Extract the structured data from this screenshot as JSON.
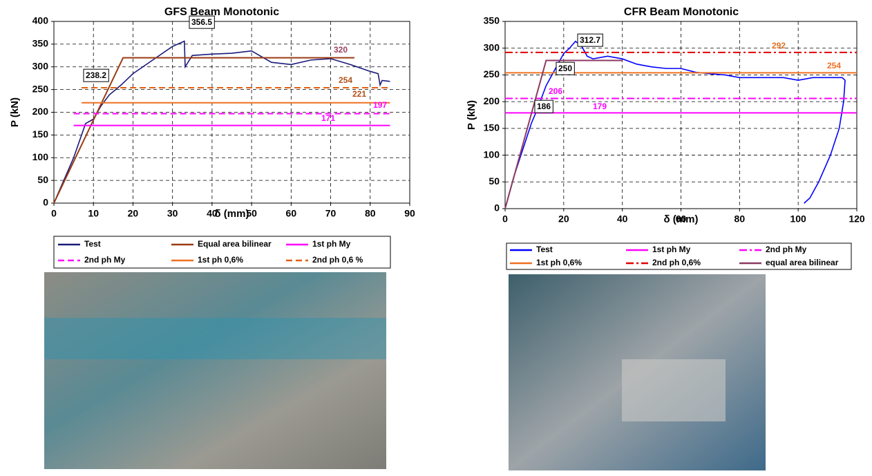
{
  "chart_data": [
    {
      "type": "line",
      "title": "GFS Beam Monotonic",
      "x_label": "δ (mm)",
      "y_label": "P (kN)",
      "xlim": [
        0,
        90
      ],
      "xticks": [
        0,
        10,
        20,
        30,
        40,
        50,
        60,
        70,
        80,
        90
      ],
      "ylim": [
        0,
        400
      ],
      "yticks": [
        0,
        50,
        100,
        150,
        200,
        250,
        300,
        350,
        400
      ],
      "grid": true,
      "series": [
        {
          "name": "Test",
          "color": "#1a1a7a",
          "style": "solid",
          "x": [
            0,
            5,
            8,
            10,
            12,
            14,
            17,
            20,
            25,
            30,
            33,
            33.2,
            35,
            40,
            45,
            50,
            55,
            60,
            65,
            70,
            75,
            80,
            82,
            82.5,
            83,
            85
          ],
          "values": [
            0,
            100,
            175,
            185,
            215,
            238.2,
            260,
            285,
            315,
            345,
            356.5,
            300,
            325,
            328,
            330,
            335,
            310,
            305,
            315,
            318,
            305,
            290,
            285,
            260,
            270,
            268
          ]
        },
        {
          "name": "Equal area bilinear",
          "color": "#9a3a12",
          "style": "solid",
          "x": [
            0,
            17.5,
            76
          ],
          "values": [
            0,
            320,
            320
          ]
        },
        {
          "name": "1st ph My",
          "color": "#ff00ff",
          "style": "solid",
          "x": [
            5,
            85
          ],
          "values": [
            171,
            171
          ]
        },
        {
          "name": "2nd ph My",
          "color": "#ff00ff",
          "style": "dashed",
          "x": [
            5,
            85
          ],
          "values": [
            197,
            197
          ]
        },
        {
          "name": "1st ph 0,6%",
          "color": "#f07020",
          "style": "solid",
          "x": [
            7,
            85
          ],
          "values": [
            221,
            221
          ]
        },
        {
          "name": "2nd ph 0,6 %",
          "color": "#e06010",
          "style": "dashed",
          "x": [
            7,
            85
          ],
          "values": [
            254,
            254
          ]
        }
      ],
      "annotations": [
        {
          "text": "356.5",
          "color": "#000000",
          "boxed": true
        },
        {
          "text": "238.2",
          "color": "#000000",
          "boxed": true
        },
        {
          "text": "320",
          "color": "#9b3f5f",
          "boxed": false
        },
        {
          "text": "254",
          "color": "#b0501a",
          "boxed": false
        },
        {
          "text": "221",
          "color": "#b0501a",
          "boxed": false
        },
        {
          "text": "197",
          "color": "#ff00ff",
          "boxed": false
        },
        {
          "text": "171",
          "color": "#ff00ff",
          "boxed": false
        }
      ]
    },
    {
      "type": "line",
      "title": "CFR Beam Monotonic",
      "x_label": "δ (mm)",
      "y_label": "P (kN)",
      "xlim": [
        0,
        120
      ],
      "xticks": [
        0,
        20,
        40,
        60,
        80,
        100,
        120
      ],
      "ylim": [
        0,
        350
      ],
      "yticks": [
        0,
        50,
        100,
        150,
        200,
        250,
        300,
        350
      ],
      "grid": true,
      "series": [
        {
          "name": "Test",
          "color": "#0000ff",
          "style": "solid",
          "x": [
            0,
            3,
            6,
            9,
            11,
            14,
            16,
            18,
            20,
            22,
            24,
            26,
            28,
            30,
            35,
            40,
            45,
            50,
            55,
            60,
            65,
            70,
            75,
            80,
            85,
            90,
            95,
            100,
            105,
            110,
            115,
            116,
            115.5,
            114,
            111,
            107,
            104,
            102
          ],
          "values": [
            0,
            60,
            110,
            160,
            186,
            230,
            250,
            270,
            290,
            300,
            312.7,
            305,
            285,
            280,
            285,
            280,
            270,
            265,
            262,
            262,
            255,
            252,
            250,
            245,
            245,
            245,
            245,
            240,
            245,
            245,
            245,
            240,
            200,
            150,
            100,
            50,
            20,
            10
          ]
        },
        {
          "name": "1st ph My",
          "color": "#ff00ff",
          "style": "solid",
          "x": [
            0,
            120
          ],
          "values": [
            179,
            179
          ]
        },
        {
          "name": "2nd ph My",
          "color": "#ff00ff",
          "style": "dashdot",
          "x": [
            0,
            120
          ],
          "values": [
            206,
            206
          ]
        },
        {
          "name": "1st ph 0,6%",
          "color": "#f07020",
          "style": "solid",
          "x": [
            0,
            120
          ],
          "values": [
            254,
            254
          ]
        },
        {
          "name": "2nd ph 0,6%",
          "color": "#e00000",
          "style": "dashdot",
          "x": [
            0,
            120
          ],
          "values": [
            292,
            292
          ]
        },
        {
          "name": "equal area bilinear",
          "color": "#8b3a62",
          "style": "solid",
          "x": [
            0,
            14,
            40
          ],
          "values": [
            0,
            277,
            277
          ]
        }
      ],
      "annotations": [
        {
          "text": "312.7",
          "color": "#000000",
          "boxed": true
        },
        {
          "text": "250",
          "color": "#000000",
          "boxed": true
        },
        {
          "text": "186",
          "color": "#000000",
          "boxed": true
        },
        {
          "text": "292",
          "color": "#e07020",
          "boxed": false
        },
        {
          "text": "254",
          "color": "#f07020",
          "boxed": false
        },
        {
          "text": "206",
          "color": "#ff00ff",
          "boxed": false
        },
        {
          "text": "179",
          "color": "#ff00ff",
          "boxed": false
        }
      ]
    }
  ]
}
